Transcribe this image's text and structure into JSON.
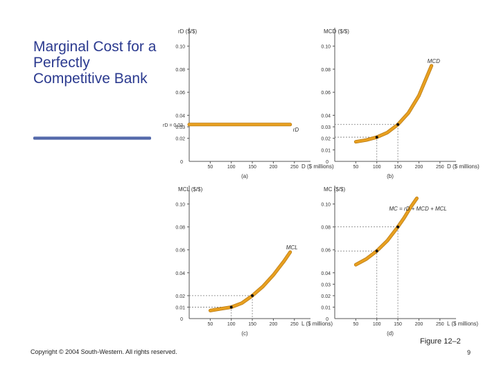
{
  "slide": {
    "title": "Marginal Cost for a Perfectly Competitive Bank",
    "copyright": "Copyright © 2004 South-Western. All rights reserved.",
    "figure_label": "Figure 12–2",
    "page_number": "9"
  },
  "colors": {
    "curve": "#e8a020",
    "curve_edge": "#b87810",
    "title": "#2b3a8f",
    "axis": "#555555",
    "dash": "#777777"
  },
  "chart_data": [
    {
      "panel": "a",
      "caption": "(a)",
      "type": "line",
      "ylabel": "rD ($/$)",
      "xlabel": "D ($ millions)",
      "xlim": [
        0,
        280
      ],
      "ylim": [
        0,
        0.11
      ],
      "xticks": [
        "50",
        "100",
        "150",
        "200",
        "250"
      ],
      "yticks": [
        "0.10",
        "0.08",
        "0.06",
        "0.04",
        "0.03",
        "0.02"
      ],
      "series": [
        {
          "name": "rD",
          "label": "rD",
          "x": [
            0,
            240
          ],
          "y": [
            0.032,
            0.032
          ]
        }
      ],
      "points": [],
      "annotations": [
        {
          "text": "rD = 0.03",
          "at": "y-axis"
        }
      ]
    },
    {
      "panel": "b",
      "caption": "(b)",
      "type": "line",
      "ylabel": "MCD ($/$)",
      "xlabel": "D ($ millions)",
      "xlim": [
        0,
        280
      ],
      "ylim": [
        0,
        0.11
      ],
      "xticks": [
        "50",
        "100",
        "150",
        "200",
        "250"
      ],
      "yticks": [
        "0.10",
        "0.08",
        "0.06",
        "0.04",
        "0.03",
        "0.02",
        "0.01"
      ],
      "series": [
        {
          "name": "MCD",
          "label": "MCD",
          "x": [
            50,
            75,
            100,
            125,
            150,
            175,
            200,
            215,
            230
          ],
          "y": [
            0.017,
            0.0185,
            0.021,
            0.025,
            0.032,
            0.042,
            0.057,
            0.07,
            0.083
          ]
        }
      ],
      "points": [
        {
          "x": 100,
          "y": 0.021
        },
        {
          "x": 150,
          "y": 0.032
        }
      ]
    },
    {
      "panel": "c",
      "caption": "(c)",
      "type": "line",
      "ylabel": "MCL ($/$)",
      "xlabel": "L ($ millions)",
      "xlim": [
        0,
        280
      ],
      "ylim": [
        0,
        0.11
      ],
      "xticks": [
        "50",
        "100",
        "150",
        "200",
        "250"
      ],
      "yticks": [
        "0.10",
        "0.08",
        "0.06",
        "0.04",
        "0.02",
        "0.01"
      ],
      "series": [
        {
          "name": "MCL",
          "label": "MCL",
          "x": [
            50,
            75,
            100,
            125,
            150,
            175,
            200,
            225,
            240
          ],
          "y": [
            0.007,
            0.0085,
            0.01,
            0.0135,
            0.02,
            0.028,
            0.038,
            0.05,
            0.058
          ]
        }
      ],
      "points": [
        {
          "x": 100,
          "y": 0.01
        },
        {
          "x": 150,
          "y": 0.02
        }
      ]
    },
    {
      "panel": "d",
      "caption": "(d)",
      "type": "line",
      "ylabel": "MC ($/$)",
      "xlabel": "L ($ millions)",
      "xlim": [
        0,
        280
      ],
      "ylim": [
        0,
        0.11
      ],
      "xticks": [
        "50",
        "100",
        "150",
        "200",
        "250"
      ],
      "yticks": [
        "0.10",
        "0.08",
        "0.06",
        "0.04",
        "0.03",
        "0.02",
        "0.01"
      ],
      "series": [
        {
          "name": "MC",
          "label": "MC = rD + MCD + MCL",
          "x": [
            50,
            75,
            100,
            125,
            150,
            165,
            180,
            195
          ],
          "y": [
            0.047,
            0.052,
            0.059,
            0.068,
            0.08,
            0.088,
            0.097,
            0.105
          ]
        }
      ],
      "points": [
        {
          "x": 100,
          "y": 0.059
        },
        {
          "x": 150,
          "y": 0.08
        }
      ]
    }
  ]
}
